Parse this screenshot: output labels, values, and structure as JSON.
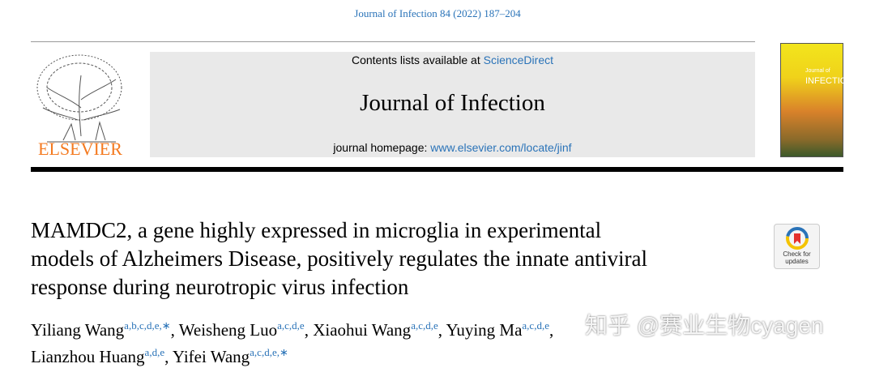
{
  "citation": "Journal of Infection 84 (2022) 187–204",
  "masthead": {
    "contents_prefix": "Contents lists available at ",
    "contents_link": "ScienceDirect",
    "journal": "Journal of Infection",
    "homepage_prefix": "journal homepage: ",
    "homepage_link": "www.elsevier.com/locate/jinf"
  },
  "publisher": "ELSEVIER",
  "cover": {
    "small": "Journal of",
    "big": "INFECTION"
  },
  "title_lines": [
    "MAMDC2, a gene highly expressed in microglia in experimental",
    "models of Alzheimers Disease, positively regulates the innate antiviral",
    "response during neurotropic virus infection"
  ],
  "check_updates": [
    "Check for",
    "updates"
  ],
  "author_lines": [
    [
      {
        "name": "Yiliang Wang",
        "sup": "a,b,c,d,e,∗",
        "punct": ","
      },
      {
        "name": "Weisheng Luo",
        "sup": "a,c,d,e",
        "punct": ","
      },
      {
        "name": "Xiaohui Wang",
        "sup": "a,c,d,e",
        "punct": ","
      },
      {
        "name": "Yuying Ma",
        "sup": "a,c,d,e",
        "punct": ","
      }
    ],
    [
      {
        "name": "Lianzhou Huang",
        "sup": "a,d,e",
        "punct": ","
      },
      {
        "name": "Yifei Wang",
        "sup": "a,c,d,e,∗"
      }
    ]
  ],
  "watermark": "知乎 @赛业生物cyagen"
}
